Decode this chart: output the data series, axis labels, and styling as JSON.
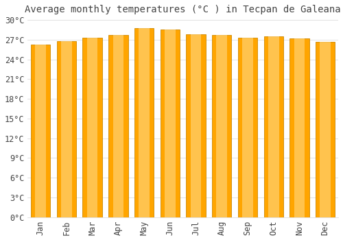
{
  "title": "Average monthly temperatures (°C ) in Tecpan de Galeana",
  "months": [
    "Jan",
    "Feb",
    "Mar",
    "Apr",
    "May",
    "Jun",
    "Jul",
    "Aug",
    "Sep",
    "Oct",
    "Nov",
    "Dec"
  ],
  "values": [
    26.3,
    26.8,
    27.3,
    27.7,
    28.8,
    28.5,
    27.8,
    27.7,
    27.3,
    27.5,
    27.2,
    26.7
  ],
  "bar_color": "#FFA500",
  "bar_color_light": "#FFD070",
  "bar_edge_color": "#CC8800",
  "background_color": "#FFFFFF",
  "grid_color": "#DDDDDD",
  "text_color": "#444444",
  "title_fontsize": 10,
  "tick_fontsize": 8.5,
  "ylim": [
    0,
    30
  ],
  "ytick_step": 3
}
